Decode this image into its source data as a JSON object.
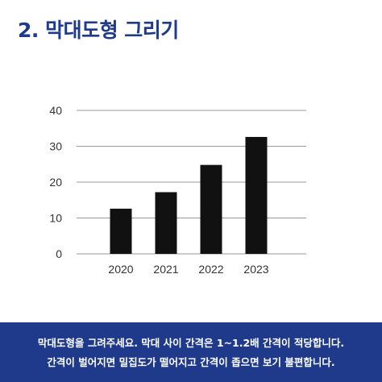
{
  "heading": "2. 막대도형 그리기",
  "colors": {
    "accent": "#1f3a8a",
    "bar": "#111111",
    "grid": "#999999"
  },
  "chart_data": {
    "type": "bar",
    "categories": [
      "2020",
      "2021",
      "2022",
      "2023"
    ],
    "values": [
      12.6,
      17.2,
      24.8,
      32.6
    ],
    "title": "",
    "xlabel": "",
    "ylabel": "",
    "ylim": [
      0,
      40
    ],
    "yticks": [
      0,
      10,
      20,
      30,
      40
    ],
    "grid": true
  },
  "footer": {
    "line1": "막대도형을 그려주세요. 막대 사이 간격은 1~1.2배 간격이 적당합니다.",
    "line2": "간격이 벌어지면 밀집도가 떨어지고 간격이 좁으면 보기 불편합니다."
  }
}
